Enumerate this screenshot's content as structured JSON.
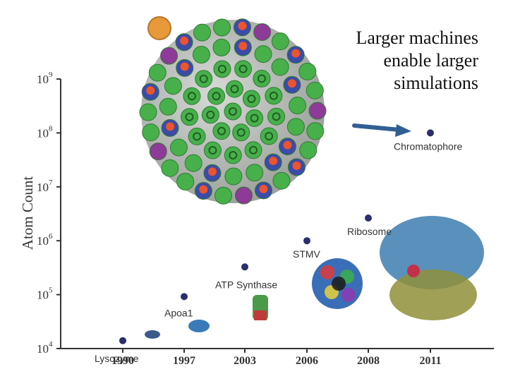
{
  "caption": [
    "Larger machines",
    "enable larger",
    "simulations"
  ],
  "colors": {
    "point": "#2b2e6e",
    "axis": "#333333",
    "arrow": "#2f5f93",
    "virus_green": "#48b04a",
    "virus_blue": "#3c4aa8",
    "virus_red": "#e8552f",
    "virus_purple": "#8e3a98",
    "virus_orange": "#e89a3a"
  },
  "chart_data": {
    "type": "scatter",
    "ylabel": "Atom Count",
    "xlabel": "",
    "y_scale": "log",
    "ylim": [
      10000,
      1000000000
    ],
    "y_ticks": [
      {
        "base": "10",
        "exp": "4",
        "value": 10000
      },
      {
        "base": "10",
        "exp": "5",
        "value": 100000
      },
      {
        "base": "10",
        "exp": "6",
        "value": 1000000
      },
      {
        "base": "10",
        "exp": "7",
        "value": 10000000
      },
      {
        "base": "10",
        "exp": "8",
        "value": 100000000
      },
      {
        "base": "10",
        "exp": "9",
        "value": 1000000000
      }
    ],
    "x_ticks": [
      "1990",
      "1997",
      "2003",
      "2006",
      "2008",
      "2011"
    ],
    "points": [
      {
        "x": "1990",
        "y": 14000,
        "label": "Lysozyme"
      },
      {
        "x": "1997",
        "y": 92000,
        "label": "Apoa1"
      },
      {
        "x": "2003",
        "y": 327000,
        "label": "ATP Synthase"
      },
      {
        "x": "2006",
        "y": 1000000,
        "label": "STMV"
      },
      {
        "x": "2008",
        "y": 2640000,
        "label": "Ribosome"
      },
      {
        "x": "2011",
        "y": 100000000,
        "label": "Chromatophore"
      }
    ]
  }
}
